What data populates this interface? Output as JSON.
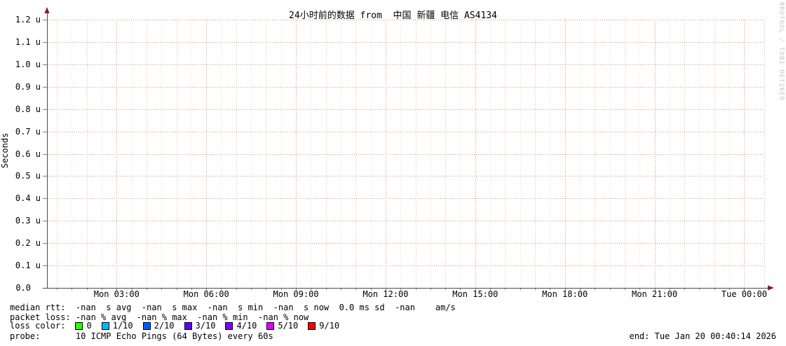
{
  "chart_data": {
    "type": "line",
    "title": "24小时前的数据 from  中国 新疆 电信 AS4134",
    "ylabel": "Seconds",
    "watermark": "RRDTOOL / TOBI OETIKER",
    "yticks": [
      "1.2 u",
      "1.1 u",
      "1.0 u",
      "0.9 u",
      "0.8 u",
      "0.7 u",
      "0.6 u",
      "0.5 u",
      "0.4 u",
      "0.3 u",
      "0.2 u",
      "0.1 u",
      "0.0"
    ],
    "xticks": [
      {
        "label": "Mon 03:00",
        "hour": 3
      },
      {
        "label": "Mon 06:00",
        "hour": 6
      },
      {
        "label": "Mon 09:00",
        "hour": 9
      },
      {
        "label": "Mon 12:00",
        "hour": 12
      },
      {
        "label": "Mon 15:00",
        "hour": 15
      },
      {
        "label": "Mon 18:00",
        "hour": 18
      },
      {
        "label": "Mon 21:00",
        "hour": 21
      },
      {
        "label": "Tue 00:00",
        "hour": 24
      }
    ],
    "ylim": [
      0,
      1.2e-06
    ],
    "x_axis": {
      "start_offset_hours": 0.6706,
      "span_hours": 24
    },
    "series": [],
    "grid": {
      "h_step": "0.1 u",
      "v_minor_minutes": 30,
      "v_major_hours": 3,
      "legend_position": "bottom"
    },
    "colors": {
      "grid_major": "#e68a8a",
      "grid_hour": "#efb6b6",
      "grid_minor": "#f7d8d8",
      "tick": "#cc5b5b",
      "axis": "#4a4a4a",
      "arrow": "#871f1f",
      "border_right": "#bbbbbb"
    }
  },
  "legend": {
    "median_rtt": "median rtt:  -nan  s avg  -nan  s max  -nan  s min  -nan  s now  0.0 ms sd  -nan    am/s",
    "packet_loss": "packet loss: -nan % avg  -nan % max  -nan % min  -nan % now",
    "loss_color_label": "loss color:",
    "loss_levels": [
      {
        "label": "0",
        "color": "#26ff00"
      },
      {
        "label": "1/10",
        "color": "#00b8ff"
      },
      {
        "label": "2/10",
        "color": "#0059ff"
      },
      {
        "label": "3/10",
        "color": "#5e00ff"
      },
      {
        "label": "4/10",
        "color": "#7e00ff"
      },
      {
        "label": "5/10",
        "color": "#dd00ff"
      },
      {
        "label": "9/10",
        "color": "#ff0000"
      }
    ],
    "probe": "probe:       10 ICMP Echo Pings (64 Bytes) every 60s",
    "end_time": "end: Tue Jan 20 00:40:14 2026"
  }
}
